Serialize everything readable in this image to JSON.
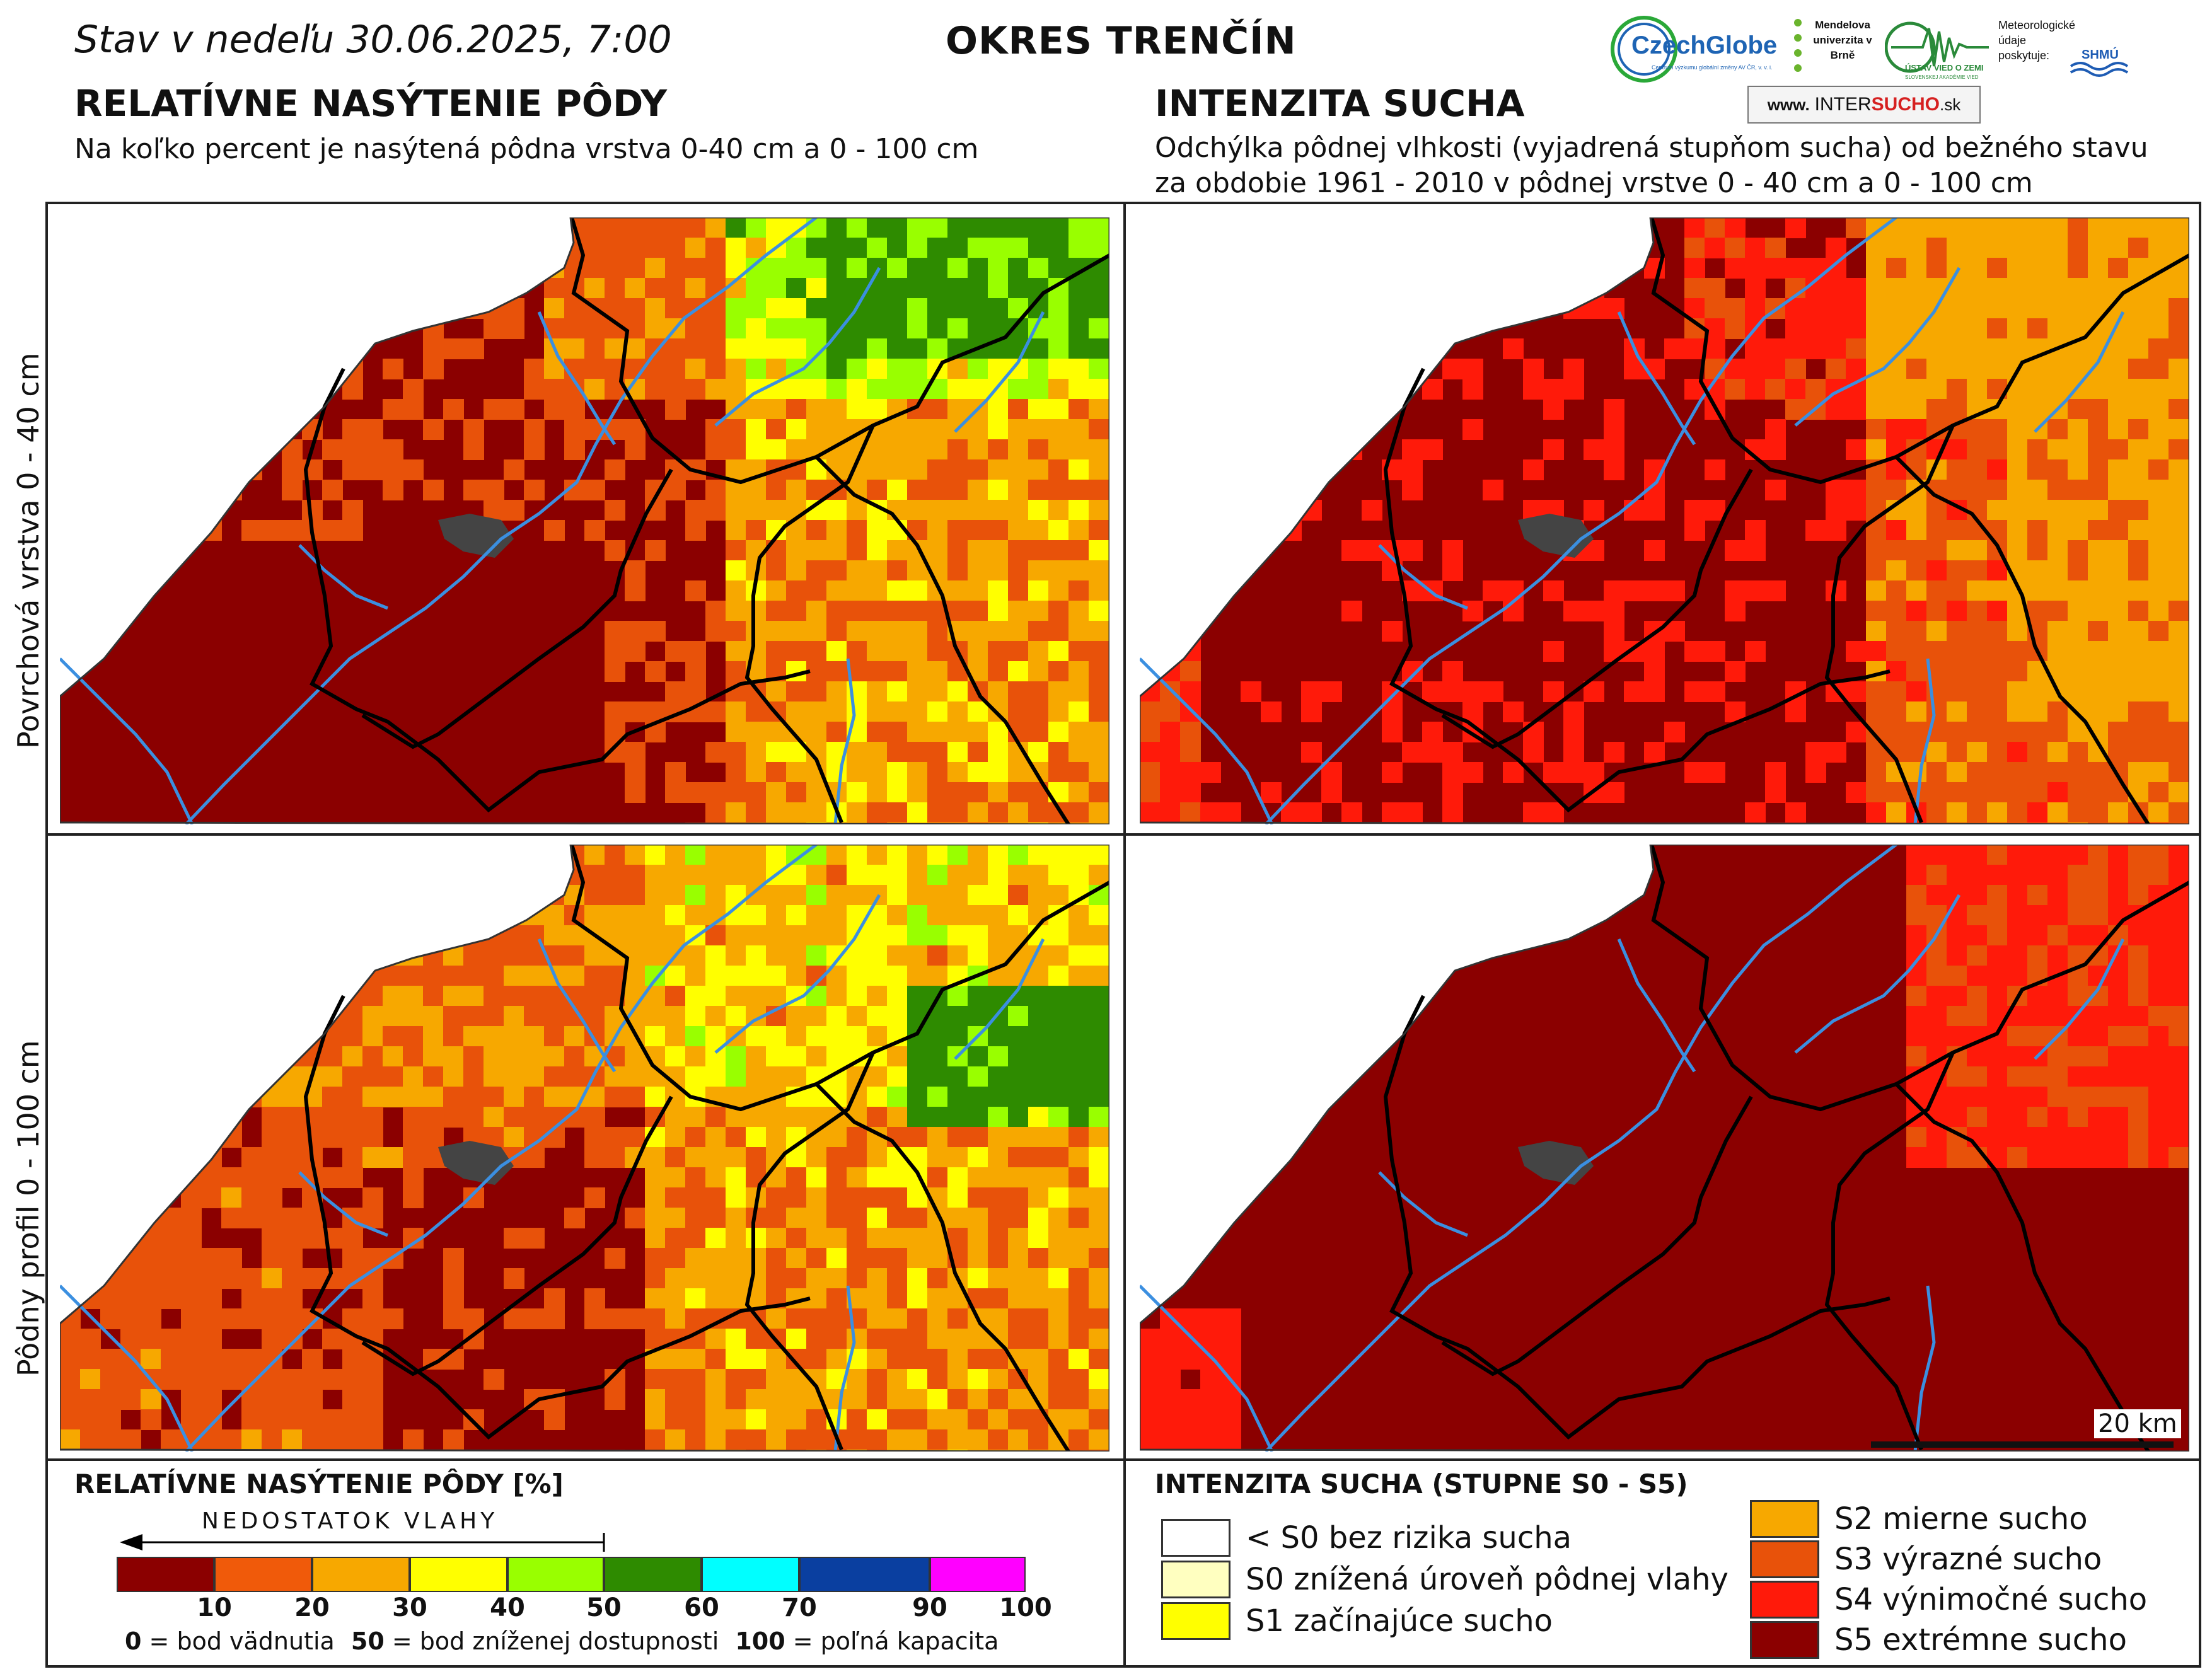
{
  "header": {
    "date_text": "Stav v nedeľu 30.06.2025, 7:00",
    "district": "OKRES  TRENČÍN"
  },
  "logos": {
    "czechglobe": "CzechGlobe",
    "czechglobe_sub": "Centrum výzkumu globální změny AV ČR, v. v. i.",
    "mendel": "Mendelova univerzita v Brně",
    "uvz": "ÚSTAV VIED O ZEMI",
    "uvz_sub": "SLOVENSKEJ AKADÉMIE VIED",
    "meteo": "Meteorologické údaje poskytuje:",
    "shmu": "SHMÚ",
    "intersucho_prefix": "www.",
    "intersucho_inter": "INTER",
    "intersucho_sucho": "SUCHO",
    "intersucho_suffix": ".sk"
  },
  "left_section": {
    "title": "RELATÍVNE NASÝTENIE PÔDY",
    "subtitle": "Na koľko percent je nasýtená pôdna vrstva 0-40 cm a 0 - 100 cm"
  },
  "right_section": {
    "title": "INTENZITA SUCHA",
    "subtitle_line1": "Odchýlka pôdnej vlhkosti (vyjadrená stupňom sucha) od bežného stavu",
    "subtitle_line2": "za obdobie 1961 - 2010 v pôdnej vrstve 0 - 40 cm a 0 - 100 cm"
  },
  "row_labels": {
    "top": "Povrchová vrstva 0 - 40 cm",
    "bottom": "Pôdny profil 0 - 100 cm"
  },
  "scale_bar": {
    "label": "20 km"
  },
  "saturation_legend": {
    "title": "RELATÍVNE NASÝTENIE PÔDY [%]",
    "arrow_label": "NEDOSTATOK VLAHY",
    "bins": [
      {
        "from": 0,
        "to": 10,
        "color": "#8b0000"
      },
      {
        "from": 10,
        "to": 20,
        "color": "#f05a0a"
      },
      {
        "from": 20,
        "to": 30,
        "color": "#f7a800"
      },
      {
        "from": 30,
        "to": 40,
        "color": "#ffff00"
      },
      {
        "from": 40,
        "to": 50,
        "color": "#99ff00"
      },
      {
        "from": 50,
        "to": 60,
        "color": "#2e8b00"
      },
      {
        "from": 60,
        "to": 70,
        "color": "#00ffff"
      },
      {
        "from": 70,
        "to": 90,
        "color": "#0a3fa0"
      },
      {
        "from": 90,
        "to": 100,
        "color": "#ff00ff"
      }
    ],
    "tick_labels": [
      "10",
      "20",
      "30",
      "40",
      "50",
      "60",
      "70",
      "90",
      "100"
    ],
    "footnote": {
      "v0": "0",
      "t0": " = bod vädnutia",
      "v50": "50",
      "t50": " = bod zníženej dostupnosti",
      "v100": "100",
      "t100": " = poľná kapacita"
    }
  },
  "drought_legend": {
    "title": "INTENZITA SUCHA (STUPNE S0 - S5)",
    "items": [
      {
        "label": "< S0 bez rizika sucha",
        "color": "#ffffff"
      },
      {
        "label": "S0 znížená úroveň pôdnej vlahy",
        "color": "#ffffc0"
      },
      {
        "label": "S1 začínajúce sucho",
        "color": "#ffff00"
      },
      {
        "label": "S2 mierne sucho",
        "color": "#f7a800"
      },
      {
        "label": "S3 výrazné sucho",
        "color": "#e8520a"
      },
      {
        "label": "S4 výnimočné sucho",
        "color": "#ff1a0a"
      },
      {
        "label": "S5 extrémne sucho",
        "color": "#8b0000"
      }
    ]
  },
  "colors": {
    "s5": "#8b0000",
    "s4": "#ff1a0a",
    "s3": "#e8520a",
    "s2": "#f7a800",
    "s1": "#ffff00",
    "light_green": "#99ff00",
    "dark_green": "#2e8b00",
    "river": "#3b8fe0",
    "border": "#000000",
    "city": "#444444"
  }
}
